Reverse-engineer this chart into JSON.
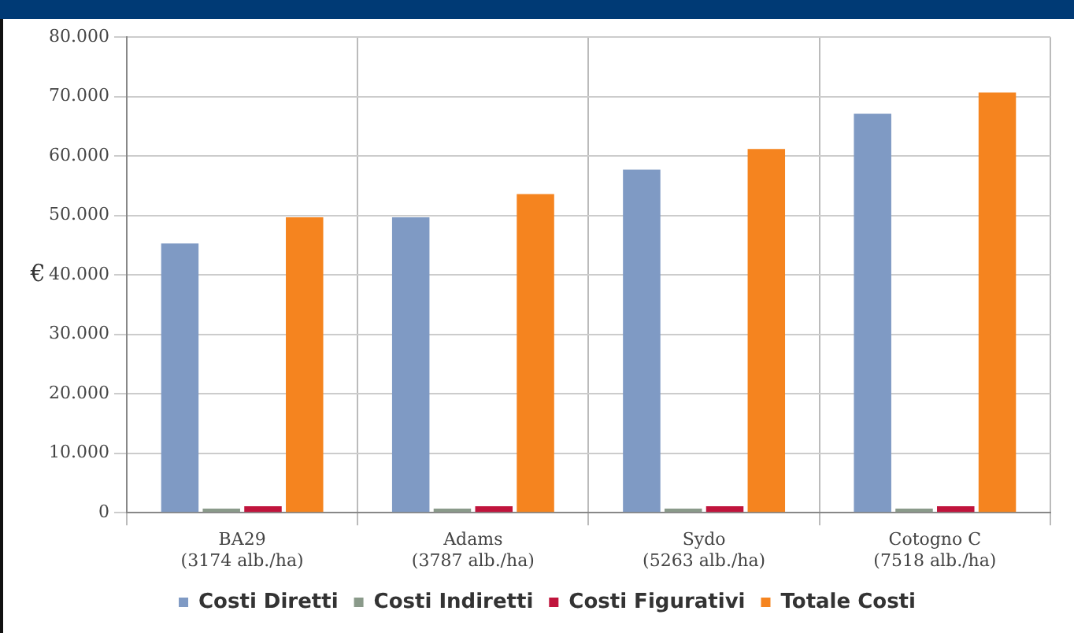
{
  "chart_data": {
    "type": "bar",
    "ylabel": "€",
    "categories": [
      "BA29\n(3174 alb./ha)",
      "Adams\n(3787 alb./ha)",
      "Sydo\n(5263 alb./ha)",
      "Cotogno C\n(7518 alb./ha)"
    ],
    "series": [
      {
        "name": "Costi Diretti",
        "color": "#7f9ac4",
        "values": [
          45300,
          49700,
          57700,
          67100
        ]
      },
      {
        "name": "Costi Indiretti",
        "color": "#8a9a8a",
        "values": [
          700,
          700,
          700,
          700
        ]
      },
      {
        "name": "Costi Figurativi",
        "color": "#c0143c",
        "values": [
          1100,
          1100,
          1100,
          1100
        ]
      },
      {
        "name": "Totale Costi",
        "color": "#f5841f",
        "values": [
          49700,
          53600,
          61200,
          70700
        ]
      }
    ],
    "ylim": [
      0,
      80000
    ],
    "yticks": [
      {
        "value": 0,
        "label": "0"
      },
      {
        "value": 10000,
        "label": "10.000"
      },
      {
        "value": 20000,
        "label": "20.000"
      },
      {
        "value": 30000,
        "label": "30.000"
      },
      {
        "value": 40000,
        "label": "40.000"
      },
      {
        "value": 50000,
        "label": "50.000"
      },
      {
        "value": 60000,
        "label": "60.000"
      },
      {
        "value": 70000,
        "label": "70.000"
      },
      {
        "value": 80000,
        "label": "80.000"
      }
    ],
    "grid": true,
    "legend": "bottom"
  }
}
